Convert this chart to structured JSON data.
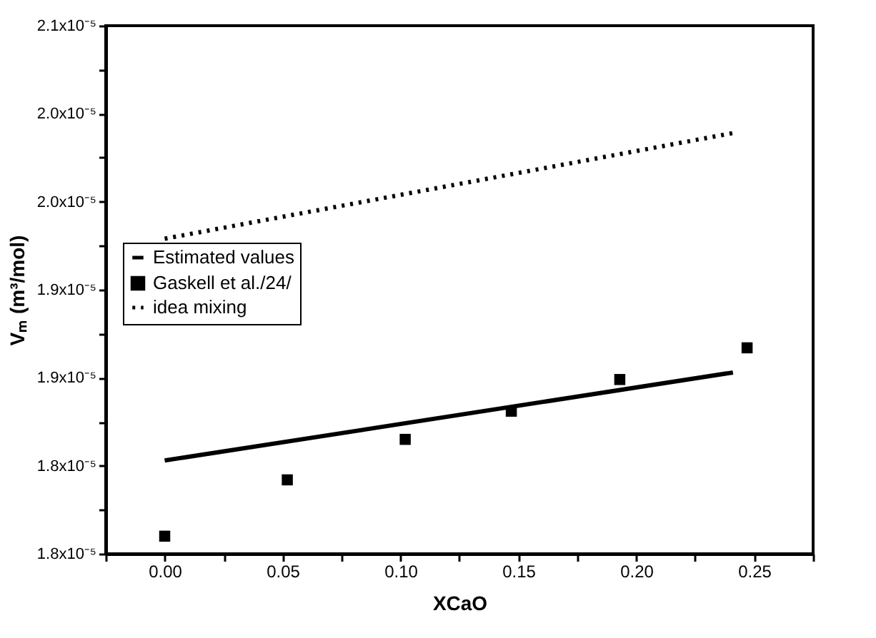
{
  "chart_data": {
    "type": "line",
    "xlabel": "XCaO",
    "ylabel": "Vₘ (m³/mol)",
    "xlim": [
      -0.025,
      0.275
    ],
    "xticks": [
      {
        "value": -0.025,
        "label": null
      },
      {
        "value": 0,
        "label": "0.00"
      },
      {
        "value": 0.025,
        "label": null
      },
      0.05,
      {
        "value": 0.075,
        "label": null
      },
      {
        "value": 0.1,
        "label": "0.10"
      },
      {
        "value": 0.125,
        "label": null
      },
      0.15,
      {
        "value": 0.175,
        "label": null
      },
      {
        "value": 0.2,
        "label": "0.20"
      },
      {
        "value": 0.225,
        "label": null
      },
      0.25,
      {
        "value": 0.275,
        "label": null
      }
    ],
    "ylim": [
      1.8e-05,
      2.1e-05
    ],
    "yticks": [
      {
        "value": 1.8e-05,
        "label": "1.8x10⁻⁵"
      },
      {
        "value": 1.825e-05,
        "label": null
      },
      {
        "value": 1.85e-05,
        "label": "1.8x10⁻⁵"
      },
      {
        "value": 1.875e-05,
        "label": null
      },
      {
        "value": 1.9e-05,
        "label": "1.9x10⁻⁵"
      },
      {
        "value": 1.925e-05,
        "label": null
      },
      {
        "value": 1.95e-05,
        "label": "1.9x10⁻⁵"
      },
      {
        "value": 1.975e-05,
        "label": null
      },
      {
        "value": 2e-05,
        "label": "2.0x10⁻⁵"
      },
      {
        "value": 2.025e-05,
        "label": null
      },
      {
        "value": 2.05e-05,
        "label": "2.0x10⁻⁵"
      },
      {
        "value": 2.075e-05,
        "label": null
      },
      {
        "value": 2.1e-05,
        "label": "2.1x10⁻⁵"
      }
    ],
    "grid": false,
    "legend": "left",
    "series": [
      {
        "name": "Estimated values",
        "line_style": "solid",
        "color": "#000000",
        "x": [
          0.0,
          0.241
        ],
        "values": [
          1.853e-05,
          1.903e-05
        ]
      },
      {
        "name": "Gaskell et al./24/",
        "type": "scatter",
        "marker": "square",
        "color": "#000000",
        "x": [
          0.0,
          0.052,
          0.102,
          0.147,
          0.193,
          0.247
        ],
        "values": [
          1.81e-05,
          1.842e-05,
          1.865e-05,
          1.881e-05,
          1.899e-05,
          1.917e-05
        ]
      },
      {
        "name": "idea mixing",
        "line_style": "dotted",
        "color": "#000000",
        "x": [
          0.0,
          0.241
        ],
        "values": [
          1.979e-05,
          2.039e-05
        ]
      }
    ]
  }
}
